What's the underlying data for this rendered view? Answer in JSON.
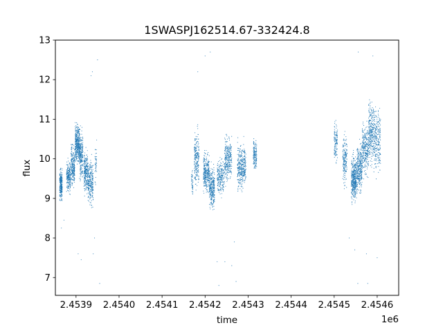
{
  "chart_data": {
    "type": "scatter",
    "title": "1SWASPJ162514.67-332424.8",
    "xlabel": "time",
    "ylabel": "flux",
    "x_offset_label": "1e6",
    "xlim": [
      2453852,
      2454650
    ],
    "ylim": [
      6.55,
      13.0
    ],
    "x_ticks": [
      2453900,
      2454000,
      2454100,
      2454200,
      2454300,
      2454400,
      2454500,
      2454600
    ],
    "x_tick_labels": [
      "2.4539",
      "2.4540",
      "2.4541",
      "2.4542",
      "2.4543",
      "2.4544",
      "2.4545",
      "2.4546"
    ],
    "y_ticks": [
      7,
      8,
      9,
      10,
      11,
      12,
      13
    ],
    "y_tick_labels": [
      "7",
      "8",
      "9",
      "10",
      "11",
      "12",
      "13"
    ],
    "grid": false,
    "marker_color": "#1f77b4",
    "series": [
      {
        "clusters": [
          {
            "x": [
              2453862,
              2453868
            ],
            "y_center": 9.35,
            "spread": 0.35,
            "n": 260
          },
          {
            "x": [
              2453878,
              2453887
            ],
            "y_center": 9.55,
            "spread": 0.35,
            "n": 220
          },
          {
            "x": [
              2453888,
              2453897
            ],
            "y_center": 9.8,
            "spread": 0.45,
            "n": 260
          },
          {
            "x": [
              2453898,
              2453908
            ],
            "y_center": 10.4,
            "spread": 0.45,
            "n": 380
          },
          {
            "x": [
              2453908,
              2453916
            ],
            "y_center": 10.1,
            "spread": 0.5,
            "n": 240
          },
          {
            "x": [
              2453918,
              2453928
            ],
            "y_center": 9.65,
            "spread": 0.45,
            "n": 260
          },
          {
            "x": [
              2453928,
              2453940
            ],
            "y_center": 9.4,
            "spread": 0.5,
            "n": 260
          },
          {
            "x": [
              2453944,
              2453948
            ],
            "y_center": 9.9,
            "spread": 0.5,
            "n": 40
          },
          {
            "x": [
              2454168,
              2454172
            ],
            "y_center": 9.4,
            "spread": 0.3,
            "n": 40
          },
          {
            "x": [
              2454175,
              2454186
            ],
            "y_center": 10.0,
            "spread": 0.6,
            "n": 240
          },
          {
            "x": [
              2454196,
              2454210
            ],
            "y_center": 9.65,
            "spread": 0.45,
            "n": 320
          },
          {
            "x": [
              2454210,
              2454222
            ],
            "y_center": 9.25,
            "spread": 0.45,
            "n": 300
          },
          {
            "x": [
              2454228,
              2454245
            ],
            "y_center": 9.55,
            "spread": 0.4,
            "n": 220
          },
          {
            "x": [
              2454245,
              2454262
            ],
            "y_center": 10.0,
            "spread": 0.5,
            "n": 300
          },
          {
            "x": [
              2454275,
              2454295
            ],
            "y_center": 9.8,
            "spread": 0.5,
            "n": 360
          },
          {
            "x": [
              2454312,
              2454320
            ],
            "y_center": 10.1,
            "spread": 0.35,
            "n": 150
          },
          {
            "x": [
              2454500,
              2454508
            ],
            "y_center": 10.4,
            "spread": 0.5,
            "n": 120
          },
          {
            "x": [
              2454520,
              2454530
            ],
            "y_center": 10.0,
            "spread": 0.6,
            "n": 180
          },
          {
            "x": [
              2454540,
              2454552
            ],
            "y_center": 9.5,
            "spread": 0.5,
            "n": 420
          },
          {
            "x": [
              2454553,
              2454565
            ],
            "y_center": 9.75,
            "spread": 0.55,
            "n": 300
          },
          {
            "x": [
              2454565,
              2454580
            ],
            "y_center": 10.25,
            "spread": 0.6,
            "n": 280
          },
          {
            "x": [
              2454580,
              2454592
            ],
            "y_center": 10.7,
            "spread": 0.7,
            "n": 260
          },
          {
            "x": [
              2454592,
              2454608
            ],
            "y_center": 10.5,
            "spread": 0.7,
            "n": 260
          }
        ],
        "outliers": [
          [
            2453866,
            8.25
          ],
          [
            2453872,
            8.45
          ],
          [
            2453905,
            7.6
          ],
          [
            2453912,
            7.45
          ],
          [
            2453935,
            12.1
          ],
          [
            2453938,
            12.2
          ],
          [
            2453950,
            12.5
          ],
          [
            2453955,
            6.85
          ],
          [
            2453943,
            8.0
          ],
          [
            2453940,
            7.6
          ],
          [
            2454183,
            12.2
          ],
          [
            2454200,
            12.6
          ],
          [
            2454212,
            12.7
          ],
          [
            2454228,
            7.4
          ],
          [
            2454232,
            6.8
          ],
          [
            2454246,
            7.4
          ],
          [
            2454262,
            7.3
          ],
          [
            2454272,
            6.9
          ],
          [
            2454268,
            7.9
          ],
          [
            2454556,
            12.7
          ],
          [
            2454590,
            12.6
          ],
          [
            2454555,
            6.85
          ],
          [
            2454578,
            6.85
          ],
          [
            2454575,
            7.6
          ],
          [
            2454600,
            7.5
          ],
          [
            2454535,
            8.0
          ],
          [
            2454548,
            7.7
          ]
        ]
      }
    ]
  }
}
